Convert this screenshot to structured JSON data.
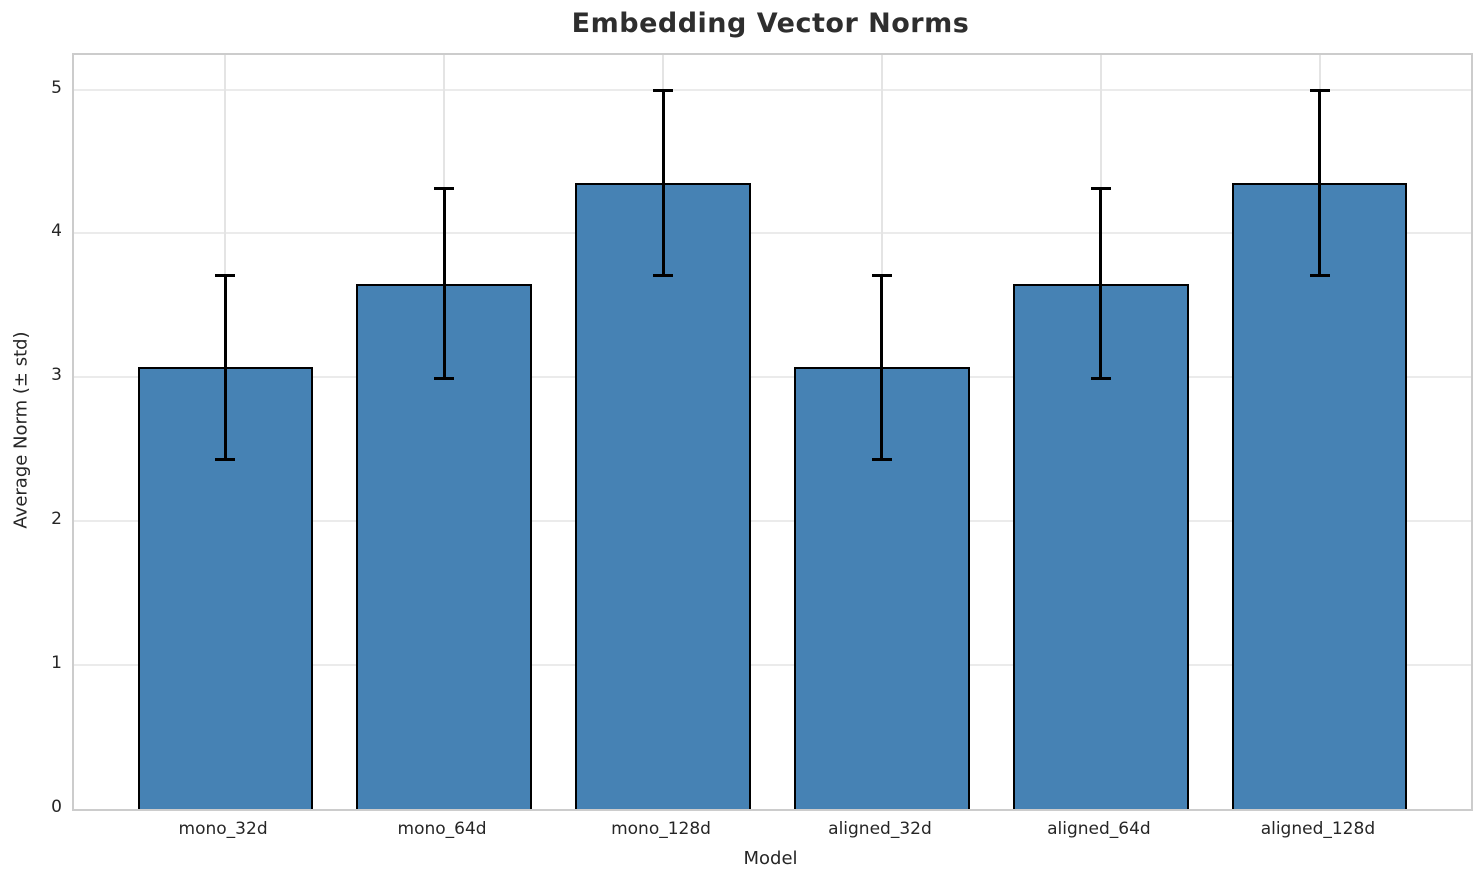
{
  "chart_data": {
    "type": "bar",
    "title": "Embedding Vector Norms",
    "xlabel": "Model",
    "ylabel": "Average Norm (± std)",
    "categories": [
      "mono_32d",
      "mono_64d",
      "mono_128d",
      "aligned_32d",
      "aligned_64d",
      "aligned_128d"
    ],
    "values": [
      3.07,
      3.65,
      4.35,
      3.07,
      3.65,
      4.35
    ],
    "errors": [
      0.64,
      0.66,
      0.64,
      0.64,
      0.66,
      0.64
    ],
    "yticks": [
      0,
      1,
      2,
      3,
      4,
      5
    ],
    "ylim": [
      0,
      5.24
    ],
    "xlim": [
      -0.69,
      5.69
    ],
    "bar_width": 0.8,
    "grid": true,
    "legend": null,
    "bar_color": "#4682B4",
    "bar_edge_color": "#000000",
    "error_color": "#000000",
    "grid_color": "#ebebeb",
    "spine_color": "#cccccc",
    "text_color": "#262626",
    "title_color": "#2e2e2e"
  }
}
